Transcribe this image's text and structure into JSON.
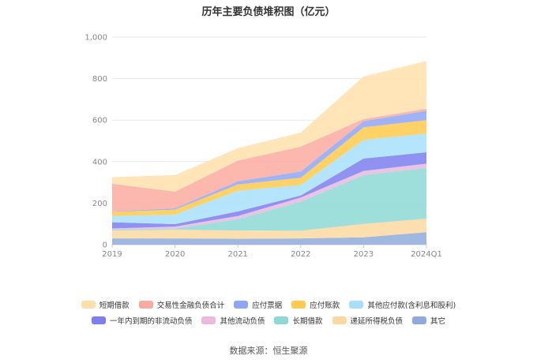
{
  "chart_data": {
    "type": "area",
    "stacked": true,
    "title": "历年主要负债堆积图（亿元）",
    "categories": [
      "2019",
      "2020",
      "2021",
      "2022",
      "2023",
      "2024Q1"
    ],
    "ylim": [
      0,
      1000
    ],
    "yticks": [
      "0",
      "200",
      "400",
      "600",
      "800",
      "1,000"
    ],
    "grid": true,
    "legend_position": "bottom",
    "series": [
      {
        "name": "其它",
        "color": "#8faadc",
        "values": [
          30,
          30,
          28,
          30,
          35,
          60
        ]
      },
      {
        "name": "递延所得税负债",
        "color": "#fdd8a0",
        "values": [
          38,
          42,
          40,
          37,
          65,
          65
        ]
      },
      {
        "name": "长期借款",
        "color": "#8dd9d6",
        "values": [
          5,
          5,
          55,
          140,
          235,
          245
        ]
      },
      {
        "name": "其他流动负债",
        "color": "#e9b9de",
        "values": [
          5,
          10,
          15,
          20,
          20,
          20
        ]
      },
      {
        "name": "一年内到期的非流动负债",
        "color": "#7d7fef",
        "values": [
          30,
          12,
          22,
          10,
          60,
          55
        ]
      },
      {
        "name": "其他应付款(含利息和股利)",
        "color": "#a8e0fb",
        "values": [
          30,
          45,
          100,
          50,
          90,
          90
        ]
      },
      {
        "name": "应付账款",
        "color": "#ffca4d",
        "values": [
          20,
          25,
          30,
          35,
          60,
          65
        ]
      },
      {
        "name": "应付票据",
        "color": "#8ea6f5",
        "values": [
          2,
          6,
          15,
          30,
          30,
          45
        ]
      },
      {
        "name": "交易性金融负债合计",
        "color": "#fbaaa0",
        "values": [
          133,
          80,
          100,
          120,
          10,
          10
        ]
      },
      {
        "name": "短期借款",
        "color": "#ffe0ab",
        "values": [
          32,
          80,
          60,
          68,
          205,
          230
        ]
      }
    ]
  },
  "legend_rows": [
    [
      {
        "label": "短期借款",
        "color": "#ffe0ab"
      },
      {
        "label": "交易性金融负债合计",
        "color": "#fbaaa0"
      },
      {
        "label": "应付票据",
        "color": "#8ea6f5"
      },
      {
        "label": "应付账款",
        "color": "#ffca4d"
      },
      {
        "label": "其他应付款(含利息和股利)",
        "color": "#a8e0fb"
      }
    ],
    [
      {
        "label": "一年内到期的非流动负债",
        "color": "#7d7fef"
      },
      {
        "label": "其他流动负债",
        "color": "#e9b9de"
      },
      {
        "label": "长期借款",
        "color": "#8dd9d6"
      },
      {
        "label": "递延所得税负债",
        "color": "#fdd8a0"
      },
      {
        "label": "其它",
        "color": "#8faadc"
      }
    ]
  ],
  "source_text": "数据来源：恒生聚源"
}
